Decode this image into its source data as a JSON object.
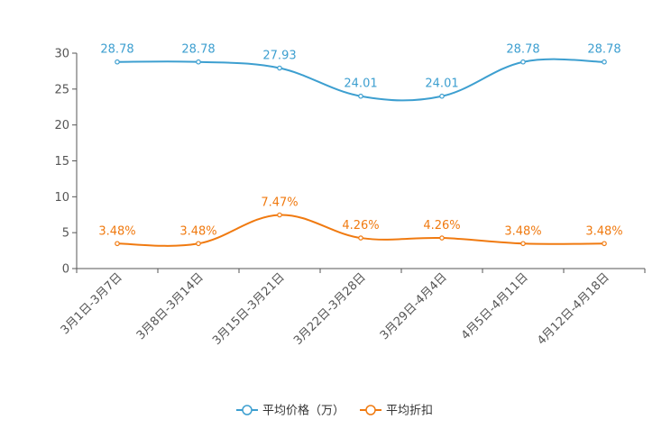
{
  "chart_data": {
    "type": "line",
    "title": "",
    "xlabel": "",
    "ylabel": "",
    "ylim": [
      0,
      30
    ],
    "yticks": [
      0,
      5,
      10,
      15,
      20,
      25,
      30
    ],
    "grid": false,
    "legend_position": "bottom-center",
    "categories": [
      "3月1日-3月7日",
      "3月8日-3月14日",
      "3月15日-3月21日",
      "3月22日-3月28日",
      "3月29日-4月4日",
      "4月5日-4月11日",
      "4月12日-4月18日"
    ],
    "series": [
      {
        "name": "平均价格（万）",
        "color": "#3d9fd0",
        "values": [
          28.78,
          28.78,
          27.93,
          24.01,
          24.01,
          28.78,
          28.78
        ],
        "labels": [
          "28.78",
          "28.78",
          "27.93",
          "24.01",
          "24.01",
          "28.78",
          "28.78"
        ]
      },
      {
        "name": "平均折扣",
        "color": "#f07a10",
        "values": [
          3.48,
          3.48,
          7.47,
          4.26,
          4.26,
          3.48,
          3.48
        ],
        "labels": [
          "3.48%",
          "3.48%",
          "7.47%",
          "4.26%",
          "4.26%",
          "3.48%",
          "3.48%"
        ]
      }
    ]
  }
}
